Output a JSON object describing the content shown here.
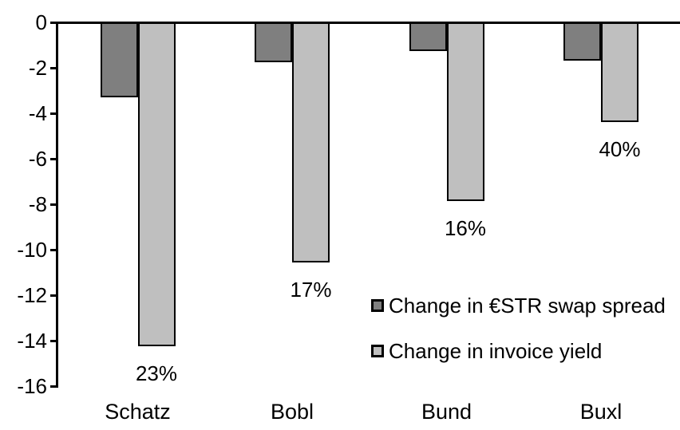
{
  "chart_data": {
    "type": "bar",
    "title": "",
    "xlabel": "",
    "ylabel": "",
    "categories": [
      "Schatz",
      "Bobl",
      "Bund",
      "Buxl"
    ],
    "series": [
      {
        "name": "Change in €STR swap spread",
        "color": "#7F7F7F",
        "values": [
          -3.3,
          -1.75,
          -1.25,
          -1.7
        ]
      },
      {
        "name": "Change in invoice yield",
        "color": "#BFBFBF",
        "values": [
          -14.25,
          -10.55,
          -7.85,
          -4.4
        ],
        "point_labels": [
          "23%",
          "17%",
          "16%",
          "40%"
        ]
      }
    ],
    "y_ticks": [
      0,
      -2,
      -4,
      -6,
      -8,
      -10,
      -12,
      -14,
      -16
    ],
    "ylim": [
      -16,
      0
    ],
    "grid": false,
    "legend_position": "inside-right",
    "bar_border_color": "#000000",
    "axis_color": "#000000",
    "background_color": "#FFFFFF"
  }
}
